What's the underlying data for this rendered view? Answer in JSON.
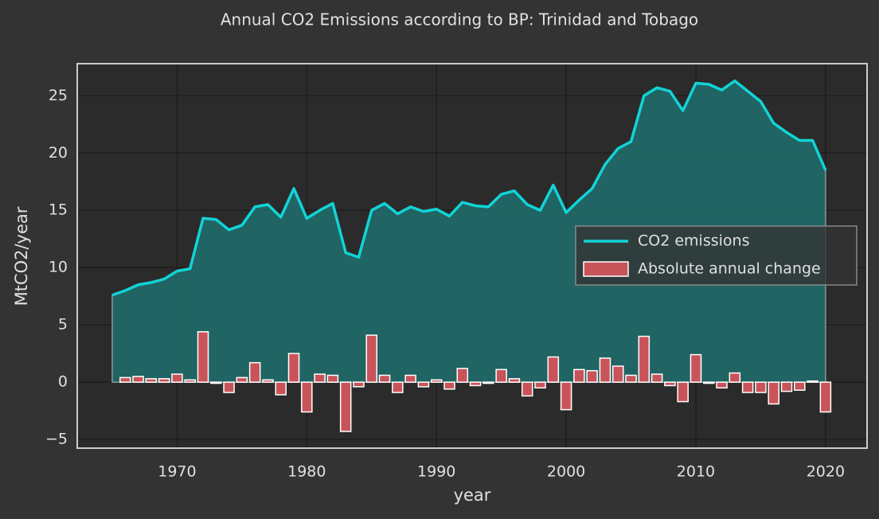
{
  "chart_data": {
    "type": "combo",
    "title": "Annual CO2 Emissions according to BP: Trinidad and Tobago",
    "xlabel": "year",
    "ylabel": "MtCO2/year",
    "x": [
      1965,
      1966,
      1967,
      1968,
      1969,
      1970,
      1971,
      1972,
      1973,
      1974,
      1975,
      1976,
      1977,
      1978,
      1979,
      1980,
      1981,
      1982,
      1983,
      1984,
      1985,
      1986,
      1987,
      1988,
      1989,
      1990,
      1991,
      1992,
      1993,
      1994,
      1995,
      1996,
      1997,
      1998,
      1999,
      2000,
      2001,
      2002,
      2003,
      2004,
      2005,
      2006,
      2007,
      2008,
      2009,
      2010,
      2011,
      2012,
      2013,
      2014,
      2015,
      2016,
      2017,
      2018,
      2019,
      2020
    ],
    "series": [
      {
        "name": "CO2 emissions",
        "type": "line",
        "color": "#12d3d6",
        "area_color": "#1f6a69",
        "values": [
          7.6,
          8.0,
          8.5,
          8.7,
          9.0,
          9.7,
          9.9,
          14.3,
          14.2,
          13.3,
          13.7,
          15.3,
          15.5,
          14.4,
          16.9,
          14.3,
          15.0,
          15.6,
          11.3,
          10.9,
          15.0,
          15.6,
          14.7,
          15.3,
          14.9,
          15.1,
          14.5,
          15.7,
          15.4,
          15.3,
          16.4,
          16.7,
          15.5,
          15.0,
          17.2,
          14.8,
          15.9,
          16.9,
          19.0,
          20.4,
          21.0,
          25.0,
          25.7,
          25.4,
          23.7,
          26.1,
          26.0,
          25.5,
          26.3,
          25.4,
          24.5,
          22.6,
          21.8,
          21.1,
          21.1,
          18.5
        ]
      },
      {
        "name": "Absolute annual change",
        "type": "bar",
        "color": "#c8545a",
        "values": [
          null,
          0.4,
          0.5,
          0.3,
          0.3,
          0.7,
          0.2,
          4.4,
          -0.1,
          -0.9,
          0.4,
          1.7,
          0.2,
          -1.1,
          2.5,
          -2.6,
          0.7,
          0.6,
          -4.3,
          -0.4,
          4.1,
          0.6,
          -0.9,
          0.6,
          -0.4,
          0.2,
          -0.6,
          1.2,
          -0.3,
          -0.1,
          1.1,
          0.3,
          -1.2,
          -0.5,
          2.2,
          -2.4,
          1.1,
          1.0,
          2.1,
          1.4,
          0.6,
          4.0,
          0.7,
          -0.3,
          -1.7,
          2.4,
          -0.1,
          -0.5,
          0.8,
          -0.9,
          -0.9,
          -1.9,
          -0.8,
          -0.7,
          0.1,
          -2.6
        ]
      }
    ],
    "xlim": [
      1962.3,
      2023.2
    ],
    "ylim": [
      -5.76,
      27.8
    ],
    "xticks": [
      1970,
      1980,
      1990,
      2000,
      2010,
      2020
    ],
    "yticks": [
      {
        "value": -5,
        "label": "−5"
      },
      0,
      5,
      10,
      15,
      20,
      25
    ],
    "grid": true,
    "legend": "center right"
  }
}
